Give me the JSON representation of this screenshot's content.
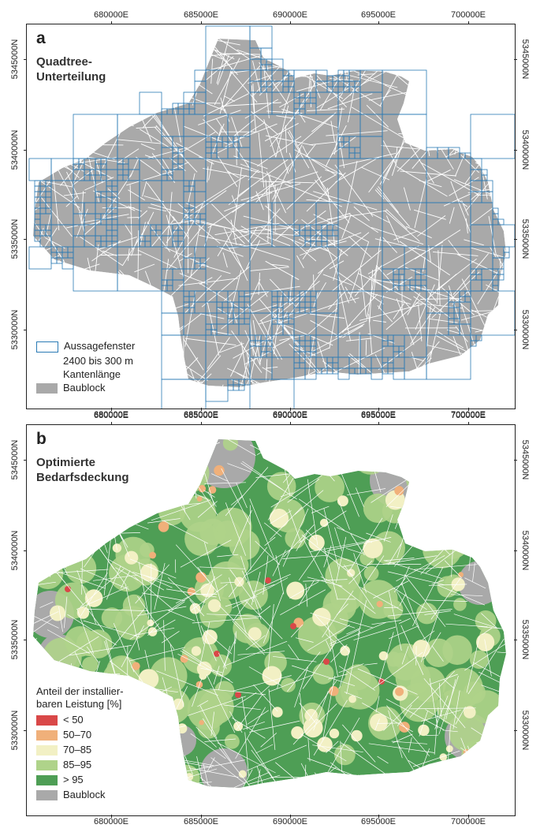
{
  "axes": {
    "x_ticks": [
      "680000E",
      "685000E",
      "690000E",
      "695000E",
      "700000E"
    ],
    "y_ticks": [
      "5345000N",
      "5340000N",
      "5335000N",
      "5330000N"
    ]
  },
  "panel_a": {
    "letter": "a",
    "title_line1": "Quadtree-",
    "title_line2": "Unterteilung",
    "legend": {
      "window_line1": "Aussagefenster",
      "window_line2": "2400 bis 300 m",
      "window_line3": "Kantenlänge",
      "block_label": "Baublock"
    }
  },
  "panel_b": {
    "letter": "b",
    "title_line1": "Optimierte",
    "title_line2": "Bedarfsdeckung",
    "legend": {
      "title_line1": "Anteil der installier-",
      "title_line2": "baren Leistung [%]",
      "classes": [
        {
          "label": "< 50",
          "color": "#d94848"
        },
        {
          "label": "50–70",
          "color": "#f0b07a"
        },
        {
          "label": "70–85",
          "color": "#f2f0c4"
        },
        {
          "label": "85–95",
          "color": "#afd38a"
        },
        {
          "label": "> 95",
          "color": "#4e9e55"
        }
      ],
      "block_label": "Baublock"
    }
  },
  "colors": {
    "baublock": "#a9a9a9",
    "quadtree": "#2a7ab5"
  }
}
